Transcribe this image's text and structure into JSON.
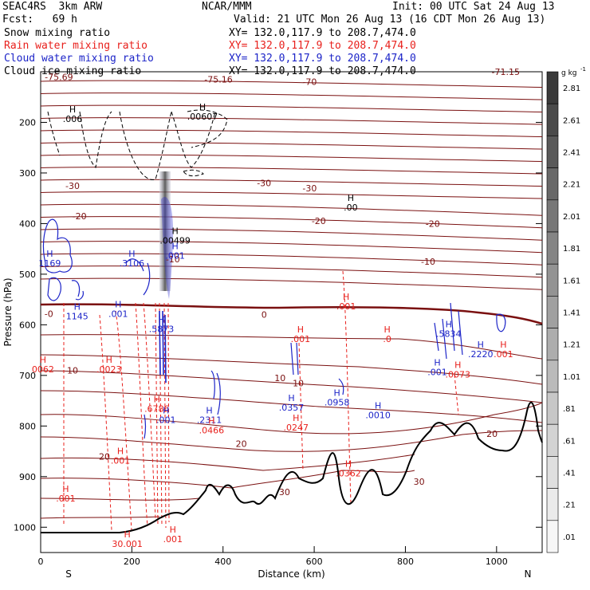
{
  "header": {
    "model_line": "SEAC4RS  3km ARW",
    "center": "NCAR/MMM",
    "init": "Init: 00 UTC Sat 24 Aug 13",
    "fcst": "Fcst:   69 h",
    "valid": "Valid: 21 UTC Mon 26 Aug 13 (16 CDT Mon 26 Aug 13)"
  },
  "legend": [
    {
      "label": "Snow mixing ratio",
      "xy": "XY= 132.0,117.9 to 208.7,474.0",
      "color": "#000000"
    },
    {
      "label": "Rain water mixing ratio",
      "xy": "XY= 132.0,117.9 to 208.7,474.0",
      "color": "#e8201c"
    },
    {
      "label": "Cloud water mixing ratio",
      "xy": "XY= 132.0,117.9 to 208.7,474.0",
      "color": "#1c24c8"
    },
    {
      "label": "Cloud ice mixing ratio",
      "xy": "XY= 132.0,117.9 to 208.7,474.0",
      "color": "#000000"
    }
  ],
  "colorbar": {
    "unit": "g kg",
    "unit_sup": "-1",
    "ticks": [
      "2.81",
      "2.61",
      "2.41",
      "2.21",
      "2.01",
      "1.81",
      "1.61",
      "1.41",
      "1.21",
      "1.01",
      ".81",
      ".61",
      ".41",
      ".21",
      ".01"
    ],
    "fills": [
      "#3a3a3a",
      "#4a4a4a",
      "#595959",
      "#686868",
      "#777777",
      "#858585",
      "#939393",
      "#a0a0a0",
      "#adadad",
      "#bababa",
      "#c7c7c7",
      "#d3d3d3",
      "#dfdfdf",
      "#ebebeb",
      "#f6f6f6"
    ]
  },
  "colors": {
    "temperature": "#7a1010",
    "zero_isotherm": "#7a1010",
    "rain": "#e8201c",
    "cloud_water": "#1c24c8",
    "terrain": "#000000"
  },
  "chart_data": {
    "type": "cross-section",
    "xlabel": "Distance (km)",
    "ylabel": "Pressure (hPa)",
    "xlim": [
      0,
      1100
    ],
    "ylim": [
      1050,
      100
    ],
    "x_ticks": [
      0,
      200,
      400,
      600,
      800,
      1000
    ],
    "y_ticks": [
      200,
      300,
      400,
      500,
      600,
      700,
      800,
      900,
      1000
    ],
    "x_end_labels": {
      "left": "S",
      "right": "N"
    },
    "temperature_labels": [
      {
        "text": "-75.69",
        "x": 40,
        "p": 110
      },
      {
        "text": "-75.16",
        "x": 390,
        "p": 115
      },
      {
        "text": "-70",
        "x": 590,
        "p": 120
      },
      {
        "text": "-71.15",
        "x": 1020,
        "p": 100
      },
      {
        "text": "-30",
        "x": 70,
        "p": 325
      },
      {
        "text": "-30",
        "x": 490,
        "p": 320
      },
      {
        "text": "-30",
        "x": 590,
        "p": 330
      },
      {
        "text": "-20",
        "x": 85,
        "p": 385
      },
      {
        "text": "-20",
        "x": 610,
        "p": 395
      },
      {
        "text": "-20",
        "x": 860,
        "p": 400
      },
      {
        "text": "-10",
        "x": 290,
        "p": 470
      },
      {
        "text": "-10",
        "x": 850,
        "p": 475
      },
      {
        "text": "0",
        "x": 490,
        "p": 580
      },
      {
        "text": "10",
        "x": 70,
        "p": 690
      },
      {
        "text": "10",
        "x": 525,
        "p": 705
      },
      {
        "text": "10",
        "x": 565,
        "p": 715
      },
      {
        "text": "20",
        "x": 140,
        "p": 860
      },
      {
        "text": "20",
        "x": 440,
        "p": 835
      },
      {
        "text": "20",
        "x": 990,
        "p": 815
      },
      {
        "text": "30",
        "x": 535,
        "p": 930
      },
      {
        "text": "30",
        "x": 830,
        "p": 910
      },
      {
        "text": "-0",
        "x": 18,
        "p": 578
      }
    ],
    "max_markers": [
      {
        "text": ".006",
        "x": 70,
        "p": 185,
        "color": "#000000"
      },
      {
        "text": ".00607",
        "x": 355,
        "p": 180,
        "color": "#000000"
      },
      {
        "text": ".00",
        "x": 680,
        "p": 360,
        "color": "#000000"
      },
      {
        "text": ".00499",
        "x": 295,
        "p": 425,
        "color": "#000000"
      },
      {
        "text": "1169",
        "x": 20,
        "p": 470,
        "color": "#1c24c8"
      },
      {
        "text": ".3106",
        "x": 200,
        "p": 470,
        "color": "#1c24c8"
      },
      {
        "text": ".001",
        "x": 295,
        "p": 455,
        "color": "#1c24c8"
      },
      {
        "text": "1145",
        "x": 80,
        "p": 575,
        "color": "#1c24c8"
      },
      {
        "text": ".001",
        "x": 170,
        "p": 570,
        "color": "#1c24c8"
      },
      {
        "text": ".5873",
        "x": 265,
        "p": 600,
        "color": "#1c24c8"
      },
      {
        "text": ".6786",
        "x": 255,
        "p": 758,
        "color": "#e8201c"
      },
      {
        "text": ".001",
        "x": 275,
        "p": 780,
        "color": "#1c24c8"
      },
      {
        "text": ".2311",
        "x": 370,
        "p": 780,
        "color": "#1c24c8"
      },
      {
        "text": ".0466",
        "x": 375,
        "p": 800,
        "color": "#e8201c"
      },
      {
        "text": ".0357",
        "x": 550,
        "p": 755,
        "color": "#1c24c8"
      },
      {
        "text": ".0247",
        "x": 560,
        "p": 795,
        "color": "#e8201c"
      },
      {
        "text": ".0958",
        "x": 650,
        "p": 745,
        "color": "#1c24c8"
      },
      {
        "text": ".0010",
        "x": 740,
        "p": 770,
        "color": "#1c24c8"
      },
      {
        "text": ".5834",
        "x": 895,
        "p": 610,
        "color": "#1c24c8"
      },
      {
        "text": ".001",
        "x": 870,
        "p": 685,
        "color": "#1c24c8"
      },
      {
        "text": ".2220",
        "x": 965,
        "p": 650,
        "color": "#1c24c8"
      },
      {
        "text": "0062",
        "x": 5,
        "p": 680,
        "color": "#e8201c"
      },
      {
        "text": ".0023",
        "x": 150,
        "p": 680,
        "color": "#e8201c"
      },
      {
        "text": ".001",
        "x": 570,
        "p": 620,
        "color": "#e8201c"
      },
      {
        "text": ".001",
        "x": 670,
        "p": 555,
        "color": "#e8201c"
      },
      {
        "text": ".0",
        "x": 760,
        "p": 620,
        "color": "#e8201c"
      },
      {
        "text": ".0073",
        "x": 915,
        "p": 690,
        "color": "#e8201c"
      },
      {
        "text": ".001",
        "x": 1015,
        "p": 650,
        "color": "#e8201c"
      },
      {
        "text": ".001",
        "x": 175,
        "p": 860,
        "color": "#e8201c"
      },
      {
        "text": ".001",
        "x": 55,
        "p": 935,
        "color": "#e8201c"
      },
      {
        "text": ".0362",
        "x": 675,
        "p": 885,
        "color": "#e8201c"
      },
      {
        "text": "30.001",
        "x": 190,
        "p": 1025,
        "color": "#e8201c"
      },
      {
        "text": ".001",
        "x": 290,
        "p": 1015,
        "color": "#e8201c"
      }
    ]
  }
}
